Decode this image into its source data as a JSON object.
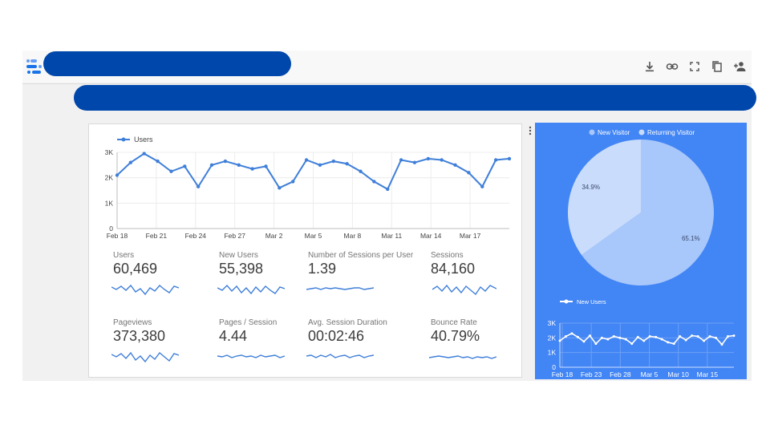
{
  "toolbar": {
    "icons": [
      "download-icon",
      "link-icon",
      "fullscreen-icon",
      "copy-icon",
      "add-person-icon"
    ]
  },
  "colors": {
    "accent": "#0047ab",
    "chart_line": "#3f7fd9",
    "panel": "#4285f4",
    "pie_main": "#a8c7fa",
    "pie_slice": "#c9dcfb"
  },
  "kpis": [
    {
      "label": "Users",
      "value": "60,469"
    },
    {
      "label": "New Users",
      "value": "55,398"
    },
    {
      "label": "Number of Sessions per User",
      "value": "1.39"
    },
    {
      "label": "Sessions",
      "value": "84,160"
    },
    {
      "label": "Pageviews",
      "value": "373,380"
    },
    {
      "label": "Pages / Session",
      "value": "4.44"
    },
    {
      "label": "Avg. Session Duration",
      "value": "00:02:46"
    },
    {
      "label": "Bounce Rate",
      "value": "40.79%"
    }
  ],
  "chart_data": [
    {
      "type": "line",
      "legend": "Users",
      "legend_position": "top-left",
      "grid": true,
      "x_ticks": [
        "Feb 18",
        "Feb 21",
        "Feb 24",
        "Feb 27",
        "Mar 2",
        "Mar 5",
        "Mar 8",
        "Mar 11",
        "Mar 14",
        "Mar 17"
      ],
      "y_ticks": [
        "0",
        "1K",
        "2K",
        "3K"
      ],
      "ylim": [
        0,
        3000
      ],
      "series": [
        {
          "name": "Users",
          "values": [
            2100,
            2600,
            2950,
            2650,
            2250,
            2450,
            1650,
            2500,
            2650,
            2500,
            2350,
            2450,
            1600,
            1850,
            2700,
            2500,
            2650,
            2550,
            2250,
            1850,
            1550,
            2700,
            2600,
            2750,
            2700,
            2500,
            2200,
            1650,
            2700,
            2750
          ]
        }
      ]
    },
    {
      "type": "pie",
      "legend": [
        "New Visitor",
        "Returning Visitor"
      ],
      "legend_position": "top",
      "slices": [
        {
          "name": "New Visitor",
          "value": 65.1,
          "label": "65.1%"
        },
        {
          "name": "Returning Visitor",
          "value": 34.9,
          "label": "34.9%"
        }
      ]
    },
    {
      "type": "line",
      "legend": "New Users",
      "legend_position": "top-left",
      "grid": true,
      "x_ticks": [
        "Feb 18",
        "Feb 23",
        "Feb 28",
        "Mar 5",
        "Mar 10",
        "Mar 15"
      ],
      "y_ticks": [
        "0",
        "1K",
        "2K",
        "3K"
      ],
      "ylim": [
        0,
        3000
      ],
      "series": [
        {
          "name": "New Users",
          "values": [
            1800,
            2100,
            2300,
            2050,
            1750,
            2150,
            1600,
            2000,
            1900,
            2100,
            2000,
            1900,
            1600,
            2050,
            1800,
            2100,
            2050,
            1900,
            1700,
            1600,
            2100,
            1850,
            2150,
            2100,
            1800,
            2100,
            2000,
            1550,
            2100,
            2150
          ]
        }
      ]
    }
  ]
}
